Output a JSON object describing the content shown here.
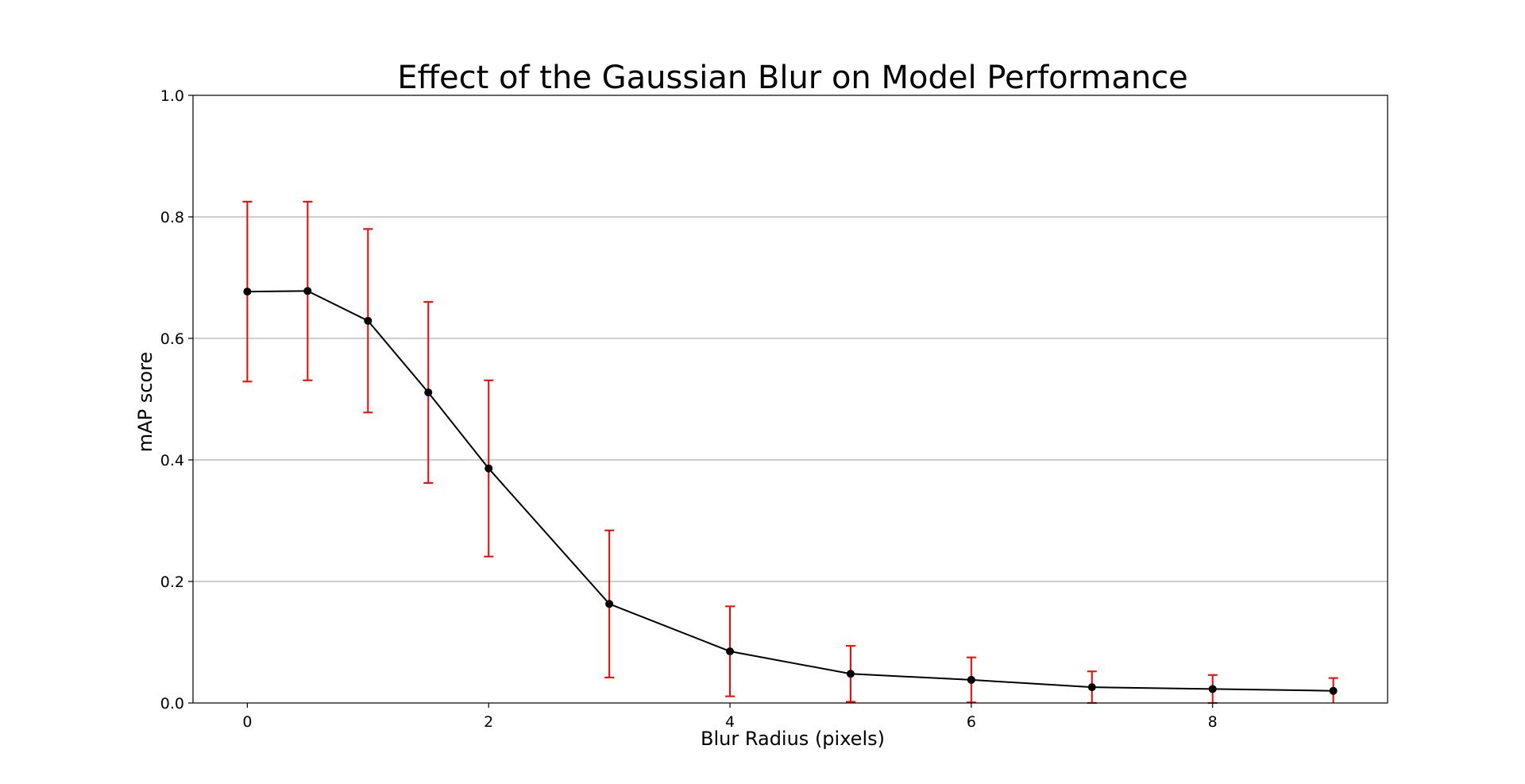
{
  "chart_data": {
    "type": "line",
    "title": "Effect of the Gaussian Blur on Model Performance",
    "xlabel": "Blur Radius (pixels)",
    "ylabel": "mAP score",
    "xlim": [
      -0.45,
      9.45
    ],
    "ylim": [
      0.0,
      1.0
    ],
    "xticks": [
      0,
      2,
      4,
      6,
      8
    ],
    "xtick_labels": [
      "0",
      "2",
      "4",
      "6",
      "8"
    ],
    "yticks": [
      0.0,
      0.2,
      0.4,
      0.6,
      0.8,
      1.0
    ],
    "ytick_labels": [
      "0.0",
      "0.2",
      "0.4",
      "0.6",
      "0.8",
      "1.0"
    ],
    "grid": "horizontal",
    "legend": "none",
    "series": [
      {
        "x": [
          0,
          0.5,
          1,
          1.5,
          2,
          3,
          4,
          5,
          6,
          7,
          8,
          9
        ],
        "y": [
          0.677,
          0.678,
          0.629,
          0.511,
          0.386,
          0.163,
          0.085,
          0.048,
          0.038,
          0.026,
          0.023,
          0.02
        ],
        "error": [
          0.148,
          0.147,
          0.151,
          0.149,
          0.145,
          0.121,
          0.074,
          0.046,
          0.037,
          0.026,
          0.023,
          0.021
        ],
        "line_color": "#000000",
        "marker_color": "#000000",
        "error_color": "#ff0000"
      }
    ]
  }
}
